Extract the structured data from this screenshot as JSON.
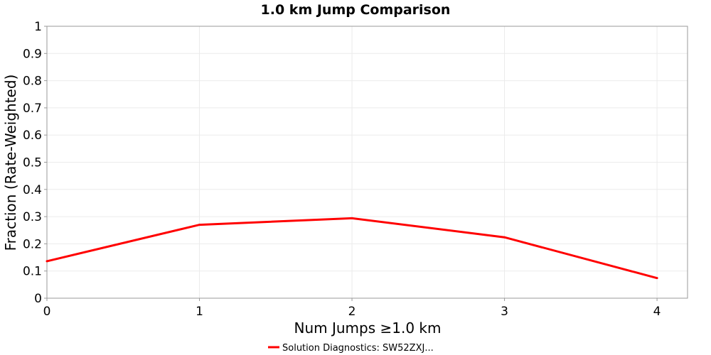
{
  "chart_data": {
    "type": "line",
    "title": "1.0 km Jump Comparison",
    "xlabel": "Num Jumps ≥1.0 km",
    "ylabel": "Fraction (Rate-Weighted)",
    "x": [
      0,
      1,
      2,
      3,
      4
    ],
    "xlim": [
      0,
      4.2
    ],
    "ylim": [
      0,
      1
    ],
    "x_ticks": [
      "0",
      "1",
      "2",
      "3",
      "4"
    ],
    "y_ticks": [
      "0",
      "0.1",
      "0.2",
      "0.3",
      "0.4",
      "0.5",
      "0.6",
      "0.7",
      "0.8",
      "0.9",
      "1"
    ],
    "grid": true,
    "legend_position": "bottom-center",
    "series": [
      {
        "name": "Solution Diagnostics: SW52ZXJ...",
        "color": "#ff0000",
        "values": [
          0.136,
          0.27,
          0.294,
          0.224,
          0.074
        ]
      }
    ]
  }
}
